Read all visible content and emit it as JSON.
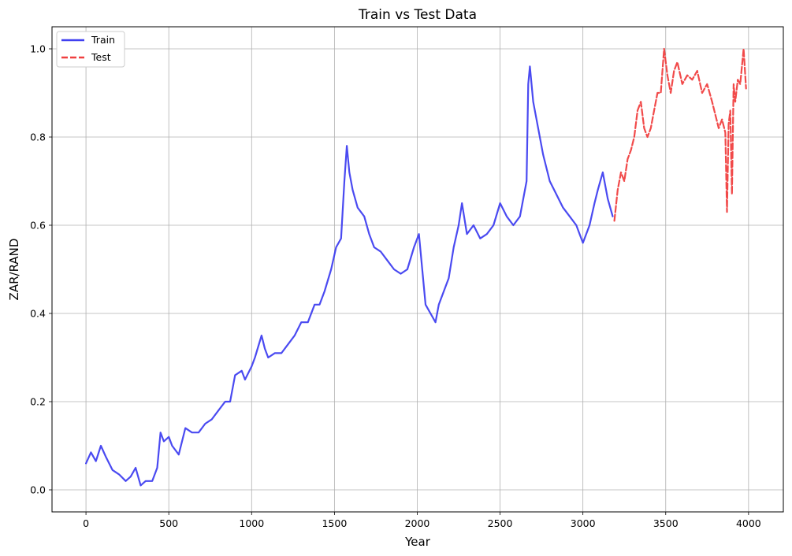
{
  "chart_data": {
    "type": "line",
    "title": "Train vs Test Data",
    "xlabel": "Year",
    "ylabel": "ZAR/RAND",
    "xlim": [
      -205,
      4210
    ],
    "ylim": [
      -0.05,
      1.05
    ],
    "x_ticks": [
      0,
      500,
      1000,
      1500,
      2000,
      2500,
      3000,
      3500,
      4000
    ],
    "y_ticks": [
      0.0,
      0.2,
      0.4,
      0.6,
      0.8,
      1.0
    ],
    "x_tick_labels": [
      "0",
      "500",
      "1000",
      "1500",
      "2000",
      "2500",
      "3000",
      "3500",
      "4000"
    ],
    "y_tick_labels": [
      "0.0",
      "0.2",
      "0.4",
      "0.6",
      "0.8",
      "1.0"
    ],
    "grid": true,
    "legend_position": "top-left",
    "series": [
      {
        "name": "Train",
        "color": "#4040f0",
        "style": "solid",
        "x": [
          0,
          30,
          60,
          90,
          120,
          160,
          200,
          240,
          270,
          300,
          330,
          360,
          400,
          430,
          450,
          470,
          500,
          520,
          560,
          600,
          640,
          680,
          720,
          760,
          800,
          840,
          870,
          900,
          940,
          960,
          1000,
          1020,
          1060,
          1080,
          1100,
          1140,
          1180,
          1220,
          1260,
          1300,
          1340,
          1380,
          1410,
          1440,
          1480,
          1510,
          1540,
          1560,
          1575,
          1590,
          1610,
          1640,
          1680,
          1710,
          1740,
          1780,
          1820,
          1860,
          1900,
          1940,
          1980,
          2010,
          2030,
          2050,
          2080,
          2110,
          2130,
          2160,
          2190,
          2220,
          2250,
          2270,
          2300,
          2340,
          2380,
          2420,
          2460,
          2500,
          2540,
          2580,
          2620,
          2660,
          2670,
          2680,
          2700,
          2730,
          2760,
          2800,
          2840,
          2880,
          2920,
          2960,
          2980,
          3000,
          3040,
          3070,
          3090,
          3120,
          3150,
          3180
        ],
        "y": [
          0.06,
          0.085,
          0.065,
          0.1,
          0.075,
          0.045,
          0.035,
          0.02,
          0.03,
          0.05,
          0.01,
          0.02,
          0.02,
          0.05,
          0.13,
          0.11,
          0.12,
          0.1,
          0.08,
          0.14,
          0.13,
          0.13,
          0.15,
          0.16,
          0.18,
          0.2,
          0.2,
          0.26,
          0.27,
          0.25,
          0.28,
          0.3,
          0.35,
          0.32,
          0.3,
          0.31,
          0.31,
          0.33,
          0.35,
          0.38,
          0.38,
          0.42,
          0.42,
          0.45,
          0.5,
          0.55,
          0.57,
          0.7,
          0.78,
          0.72,
          0.68,
          0.64,
          0.62,
          0.58,
          0.55,
          0.54,
          0.52,
          0.5,
          0.49,
          0.5,
          0.55,
          0.58,
          0.5,
          0.42,
          0.4,
          0.38,
          0.42,
          0.45,
          0.48,
          0.55,
          0.6,
          0.65,
          0.58,
          0.6,
          0.57,
          0.58,
          0.6,
          0.65,
          0.62,
          0.6,
          0.62,
          0.7,
          0.92,
          0.96,
          0.88,
          0.82,
          0.76,
          0.7,
          0.67,
          0.64,
          0.62,
          0.6,
          0.58,
          0.56,
          0.6,
          0.65,
          0.68,
          0.72,
          0.66,
          0.62
        ]
      },
      {
        "name": "Test",
        "color": "#f04040",
        "style": "dashed",
        "x": [
          3190,
          3210,
          3230,
          3250,
          3270,
          3290,
          3310,
          3330,
          3350,
          3370,
          3390,
          3410,
          3430,
          3450,
          3470,
          3490,
          3510,
          3530,
          3550,
          3570,
          3600,
          3630,
          3660,
          3690,
          3720,
          3750,
          3780,
          3800,
          3820,
          3840,
          3860,
          3870,
          3880,
          3890,
          3900,
          3910,
          3920,
          3935,
          3950,
          3970,
          3985
        ],
        "y": [
          0.61,
          0.68,
          0.72,
          0.7,
          0.75,
          0.77,
          0.8,
          0.86,
          0.88,
          0.82,
          0.8,
          0.82,
          0.86,
          0.9,
          0.9,
          1.0,
          0.94,
          0.9,
          0.95,
          0.97,
          0.92,
          0.94,
          0.93,
          0.95,
          0.9,
          0.92,
          0.88,
          0.85,
          0.82,
          0.84,
          0.81,
          0.63,
          0.83,
          0.86,
          0.67,
          0.92,
          0.88,
          0.93,
          0.92,
          1.0,
          0.91
        ]
      }
    ]
  }
}
